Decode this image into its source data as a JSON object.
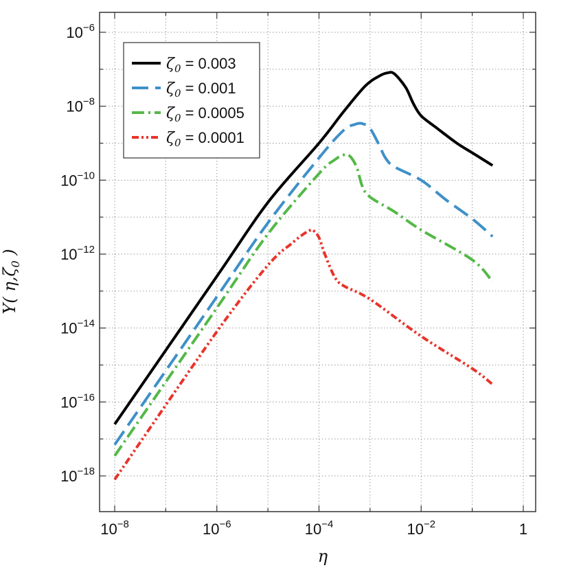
{
  "chart_data": {
    "type": "line",
    "x_scale": "log",
    "y_scale": "log",
    "xlabel": "η",
    "ylabel": {
      "main": "Y( η,ζ",
      "sub": "0",
      "close": " )"
    },
    "xlim": [
      1e-08,
      1
    ],
    "ylim": [
      1e-18,
      1e-06
    ],
    "grid": true,
    "legend_position": "top-left",
    "x_ticks": [
      {
        "base": "10",
        "exp": "−8",
        "value": 1e-08
      },
      {
        "base": "10",
        "exp": "−6",
        "value": 1e-06
      },
      {
        "base": "10",
        "exp": "−4",
        "value": 0.0001
      },
      {
        "base": "10",
        "exp": "−2",
        "value": 0.01
      },
      {
        "base": "1",
        "exp": "",
        "value": 1
      }
    ],
    "y_ticks": [
      {
        "base": "10",
        "exp": "−18",
        "value": 1e-18
      },
      {
        "base": "10",
        "exp": "−16",
        "value": 1e-16
      },
      {
        "base": "10",
        "exp": "−14",
        "value": 1e-14
      },
      {
        "base": "10",
        "exp": "−12",
        "value": 1e-12
      },
      {
        "base": "10",
        "exp": "−10",
        "value": 1e-10
      },
      {
        "base": "10",
        "exp": "−8",
        "value": 1e-08
      },
      {
        "base": "10",
        "exp": "−6",
        "value": 1e-06
      }
    ],
    "series": [
      {
        "legend": {
          "symbol": "ζ",
          "sub": "0",
          "text": " = 0.003"
        },
        "color": "#000000",
        "dash": "",
        "points": [
          [
            1e-08,
            2.5e-17
          ],
          [
            1e-06,
            2.5e-13
          ],
          [
            1e-05,
            2.5e-11
          ],
          [
            0.0001,
            1e-09
          ],
          [
            0.0003,
            7e-09
          ],
          [
            0.0008,
            3.5e-08
          ],
          [
            0.0015,
            6.5e-08
          ],
          [
            0.0022,
            8e-08
          ],
          [
            0.003,
            7.5e-08
          ],
          [
            0.005,
            3.2e-08
          ],
          [
            0.007,
            1.2e-08
          ],
          [
            0.01,
            5.5e-09
          ],
          [
            0.02,
            2.6e-09
          ],
          [
            0.05,
            1e-09
          ],
          [
            0.1,
            5.5e-10
          ],
          [
            0.25,
            2.5e-10
          ]
        ]
      },
      {
        "legend": {
          "symbol": "ζ",
          "sub": "0",
          "text": " = 0.001"
        },
        "color": "#3f90c8",
        "dash": "24,10",
        "points": [
          [
            1e-08,
            7e-18
          ],
          [
            1e-06,
            7e-14
          ],
          [
            1e-05,
            7e-12
          ],
          [
            0.0001,
            4e-10
          ],
          [
            0.0003,
            2.2e-09
          ],
          [
            0.0005,
            3.2e-09
          ],
          [
            0.0007,
            3.4e-09
          ],
          [
            0.001,
            2.5e-09
          ],
          [
            0.0015,
            9e-10
          ],
          [
            0.002,
            4e-10
          ],
          [
            0.003,
            2.3e-10
          ],
          [
            0.01,
            1e-10
          ],
          [
            0.03,
            3e-11
          ],
          [
            0.1,
            9e-12
          ],
          [
            0.25,
            3e-12
          ]
        ]
      },
      {
        "legend": {
          "symbol": "ζ",
          "sub": "0",
          "text": " = 0.0005"
        },
        "color": "#54b848",
        "dash": "18,6,3,6",
        "points": [
          [
            1e-08,
            3.5e-18
          ],
          [
            1e-06,
            3.5e-14
          ],
          [
            1e-05,
            3.5e-12
          ],
          [
            0.0001,
            1.5e-10
          ],
          [
            0.0002,
            3.5e-10
          ],
          [
            0.0003,
            4.8e-10
          ],
          [
            0.0004,
            4.5e-10
          ],
          [
            0.00055,
            2.2e-10
          ],
          [
            0.0007,
            7e-11
          ],
          [
            0.001,
            3.5e-11
          ],
          [
            0.003,
            1.4e-11
          ],
          [
            0.01,
            4.5e-12
          ],
          [
            0.1,
            7e-13
          ],
          [
            0.25,
            1.8e-13
          ]
        ]
      },
      {
        "legend": {
          "symbol": "ζ",
          "sub": "0",
          "text": " = 0.0001"
        },
        "color": "#e8342a",
        "dash": "10,4,3,4,3,4",
        "points": [
          [
            1e-08,
            8e-19
          ],
          [
            1e-06,
            8e-15
          ],
          [
            1e-05,
            5e-13
          ],
          [
            3e-05,
            2e-12
          ],
          [
            5e-05,
            3.5e-12
          ],
          [
            7e-05,
            4.5e-12
          ],
          [
            8e-05,
            4.2e-12
          ],
          [
            0.0001,
            2.8e-12
          ],
          [
            0.00013,
            1e-12
          ],
          [
            0.0002,
            2.5e-13
          ],
          [
            0.0003,
            1.4e-13
          ],
          [
            0.001,
            6e-14
          ],
          [
            0.01,
            6e-15
          ],
          [
            0.1,
            8e-16
          ],
          [
            0.25,
            3e-16
          ]
        ]
      }
    ]
  }
}
